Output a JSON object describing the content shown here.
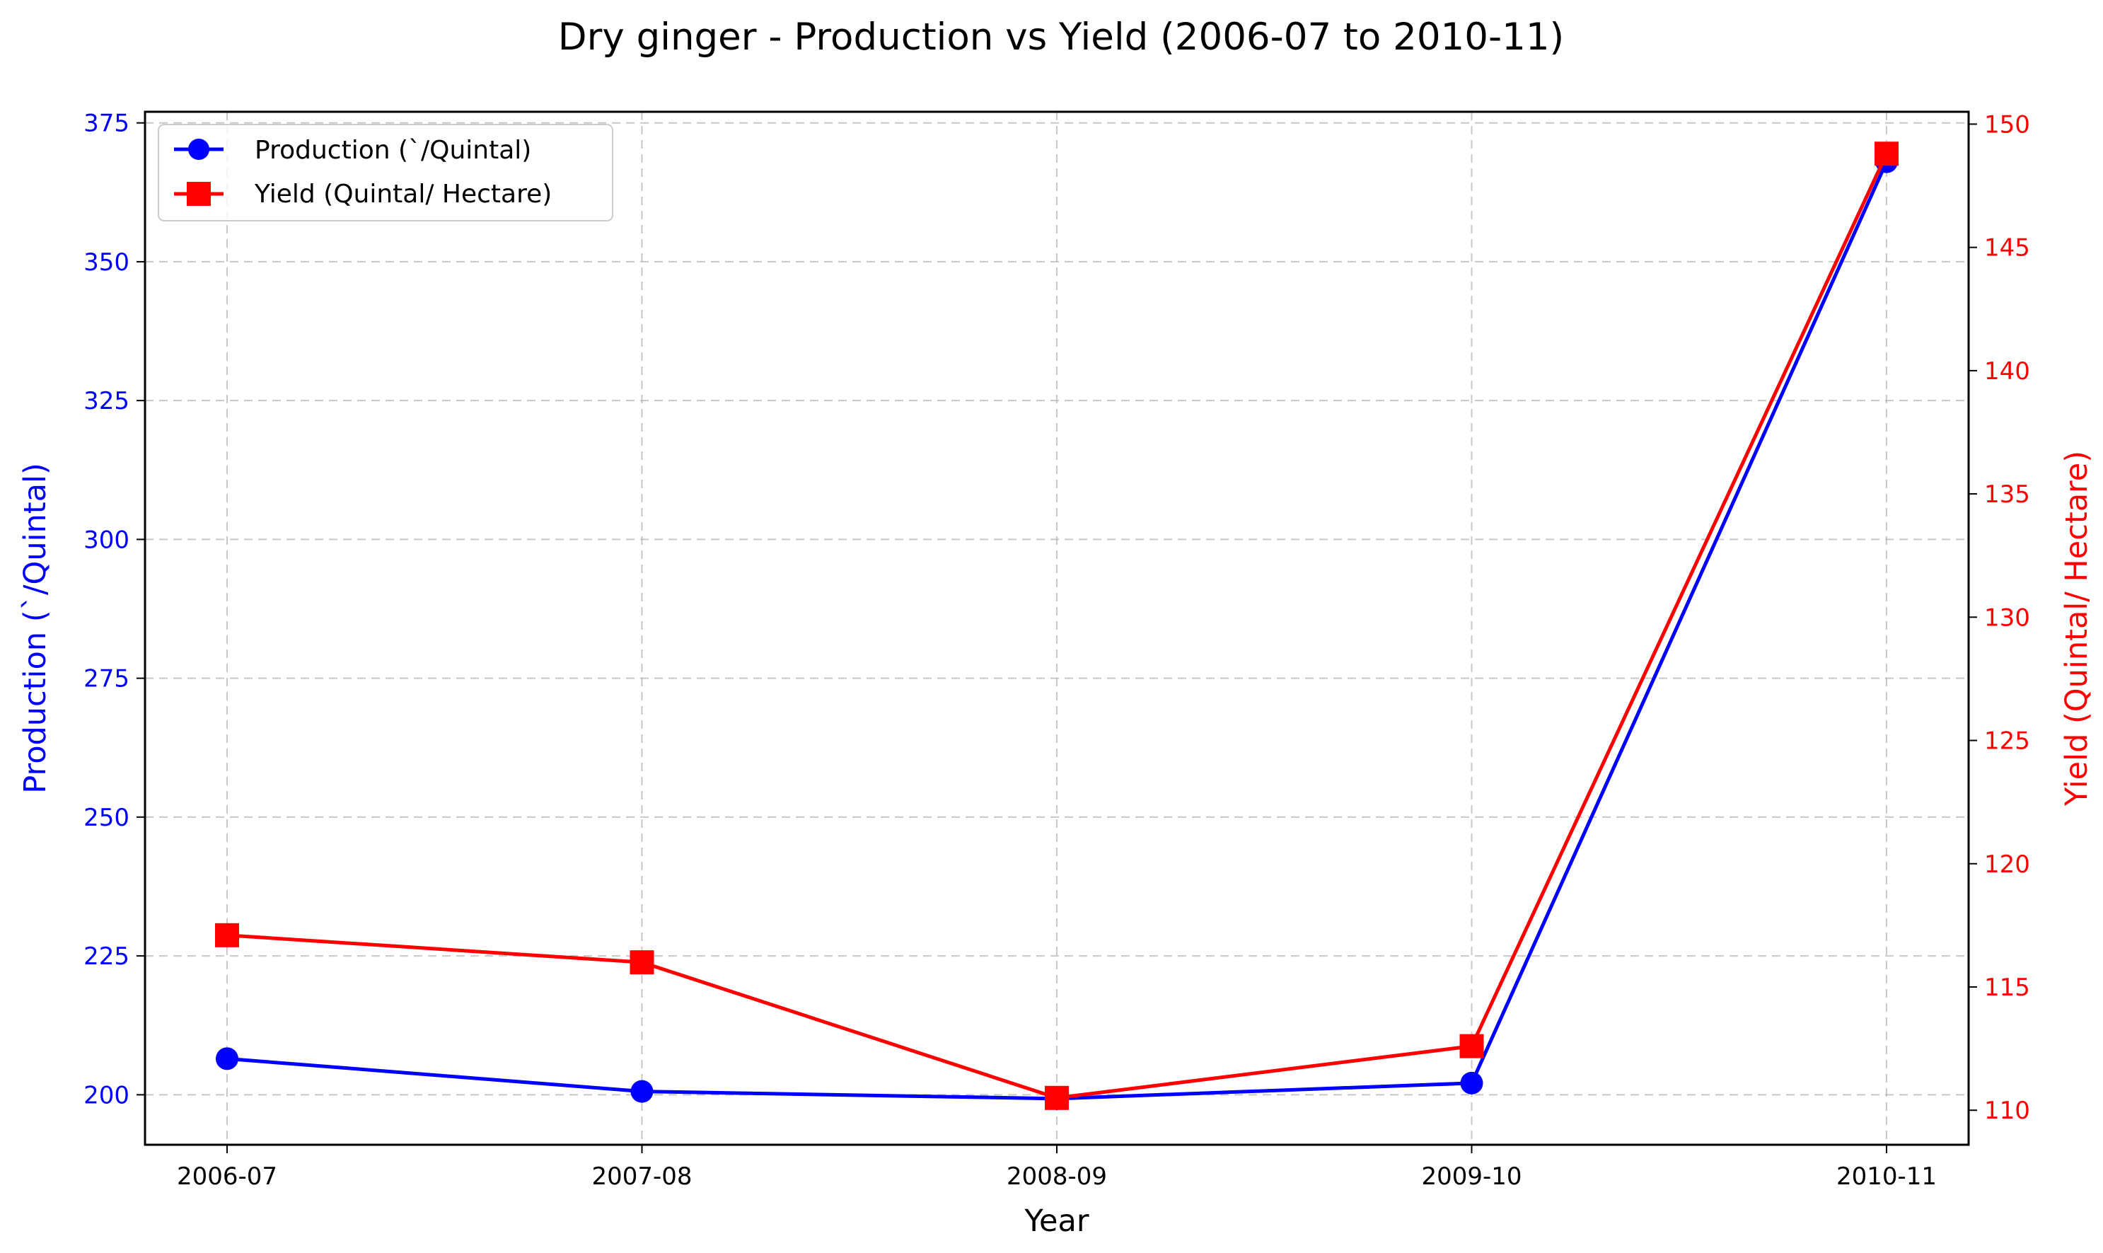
{
  "chart_data": {
    "type": "line",
    "title": "Dry ginger  - Production vs Yield (2006-07 to 2010-11)",
    "xlabel": "Year",
    "ylabel_left": "Production (`/Quintal)",
    "ylabel_right": "Yield (Quintal/ Hectare)",
    "categories": [
      "2006-07",
      "2007-08",
      "2008-09",
      "2009-10",
      "2010-11"
    ],
    "ylim_left": [
      191,
      377
    ],
    "ylim_right": [
      108.6,
      150.5
    ],
    "yticks_left": [
      200,
      225,
      250,
      275,
      300,
      325,
      350,
      375
    ],
    "yticks_right": [
      110,
      115,
      120,
      125,
      130,
      135,
      140,
      145,
      150
    ],
    "grid": true,
    "legend_position": "top-left",
    "series": [
      {
        "name": "Production (`/Quintal)",
        "axis": "left",
        "color": "#0000ff",
        "marker": "circle",
        "values": [
          206.5,
          200.6,
          199.3,
          202.1,
          368.0
        ]
      },
      {
        "name": "Yield (Quintal/ Hectare)",
        "axis": "right",
        "color": "#ff0000",
        "marker": "square",
        "values": [
          117.1,
          116.0,
          110.5,
          112.6,
          148.8
        ]
      }
    ]
  }
}
